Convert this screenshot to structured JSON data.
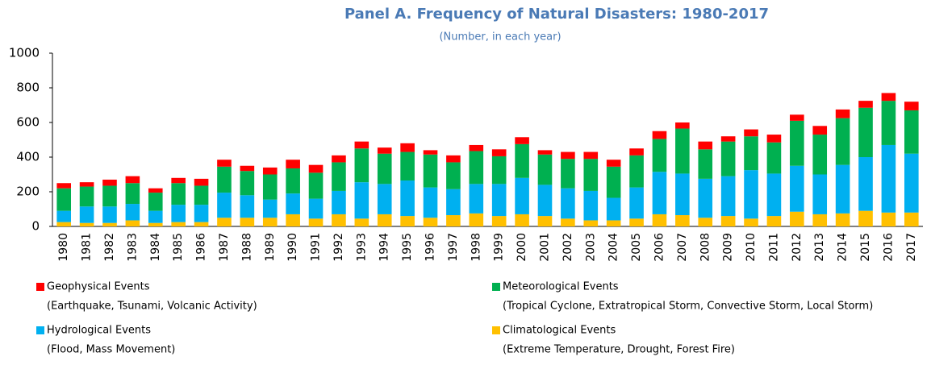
{
  "chart_data": {
    "type": "stacked_bar",
    "title": "Panel A. Frequency of Natural Disasters: 1980-2017",
    "subtitle": "(Number, in each year)",
    "categories": [
      "1980",
      "1981",
      "1982",
      "1983",
      "1984",
      "1985",
      "1986",
      "1987",
      "1988",
      "1989",
      "1990",
      "1991",
      "1992",
      "1993",
      "1994",
      "1995",
      "1996",
      "1997",
      "1998",
      "1999",
      "2000",
      "2001",
      "2002",
      "2003",
      "2004",
      "2005",
      "2006",
      "2007",
      "2008",
      "2009",
      "2010",
      "2011",
      "2012",
      "2013",
      "2014",
      "2015",
      "2016",
      "2017"
    ],
    "series": [
      {
        "name": "Climatological Events",
        "description": "(Extreme Temperature, Drought, Forest Fire)",
        "color": "#ffc000",
        "values": [
          25,
          20,
          20,
          35,
          20,
          25,
          25,
          50,
          50,
          50,
          70,
          45,
          70,
          45,
          70,
          60,
          50,
          65,
          75,
          60,
          70,
          60,
          45,
          35,
          35,
          45,
          70,
          65,
          50,
          60,
          45,
          60,
          85,
          70,
          75,
          90,
          80,
          80
        ]
      },
      {
        "name": "Hydrological Events",
        "description": "(Flood, Mass Movement)",
        "color": "#00b0f0",
        "values": [
          65,
          95,
          95,
          95,
          70,
          100,
          100,
          145,
          130,
          105,
          120,
          115,
          135,
          210,
          175,
          205,
          175,
          150,
          170,
          185,
          210,
          180,
          175,
          170,
          130,
          180,
          245,
          240,
          225,
          230,
          280,
          245,
          265,
          230,
          280,
          310,
          390,
          340
        ]
      },
      {
        "name": "Meteorological Events",
        "description": "(Tropical Cyclone, Extratropical Storm, Convective Storm, Local Storm)",
        "color": "#00b050",
        "values": [
          130,
          115,
          120,
          120,
          105,
          125,
          110,
          150,
          140,
          145,
          145,
          150,
          165,
          195,
          175,
          165,
          190,
          155,
          190,
          160,
          195,
          175,
          170,
          185,
          180,
          185,
          190,
          260,
          170,
          200,
          195,
          180,
          260,
          230,
          270,
          285,
          255,
          250
        ]
      },
      {
        "name": "Geophysical Events",
        "description": "(Earthquake, Tsunami, Volcanic Activity)",
        "color": "#ff0000",
        "values": [
          30,
          25,
          35,
          40,
          25,
          30,
          40,
          40,
          30,
          40,
          50,
          45,
          40,
          40,
          35,
          50,
          25,
          40,
          35,
          40,
          40,
          25,
          40,
          40,
          40,
          40,
          45,
          35,
          45,
          30,
          40,
          45,
          35,
          50,
          50,
          40,
          45,
          50
        ]
      }
    ],
    "ylim": [
      0,
      1000
    ],
    "yticks": [
      0,
      200,
      400,
      600,
      800,
      1000
    ],
    "grid": false
  }
}
